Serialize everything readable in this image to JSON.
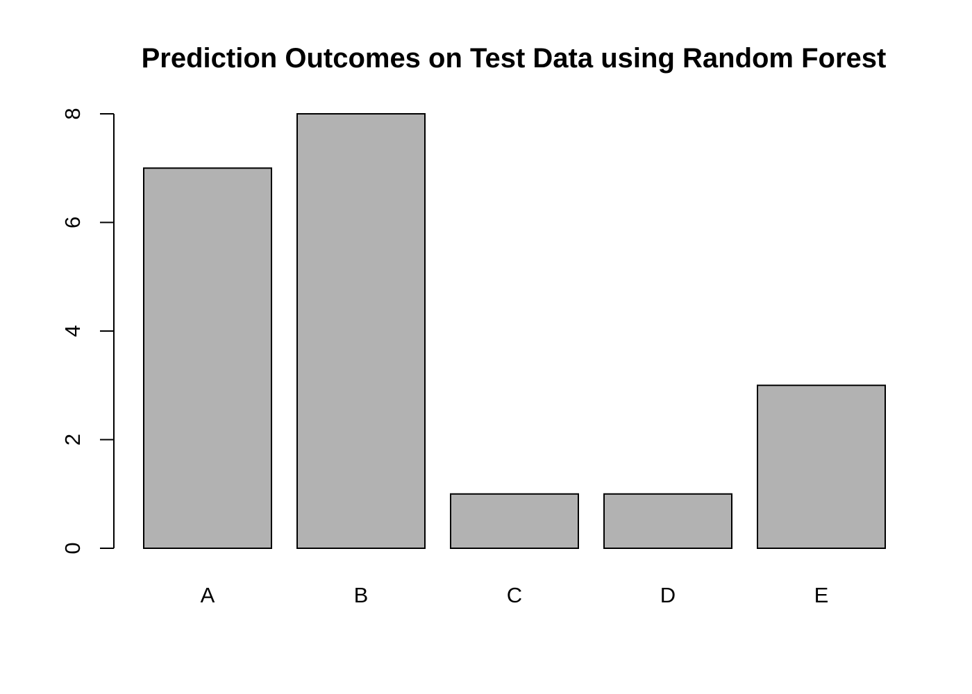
{
  "chart_data": {
    "type": "bar",
    "title": "Prediction Outcomes on Test Data using Random Forest",
    "xlabel": "",
    "ylabel": "",
    "categories": [
      "A",
      "B",
      "C",
      "D",
      "E"
    ],
    "values": [
      7,
      8,
      1,
      1,
      3
    ],
    "ylim": [
      0,
      8
    ],
    "yticks": [
      0,
      2,
      4,
      6,
      8
    ],
    "bar_color": "#b2b2b2",
    "border_color": "#000000",
    "grid": false,
    "legend": "none"
  }
}
